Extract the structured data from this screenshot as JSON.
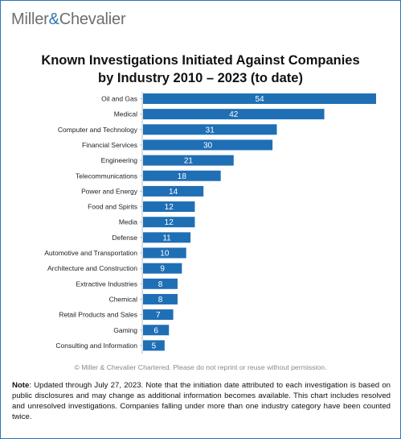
{
  "header": {
    "brand_left": "Miller",
    "brand_amp": "&",
    "brand_right": "Chevalier"
  },
  "title": {
    "line1": "Known Investigations Initiated Against Companies",
    "line2": "by Industry 2010 – 2023 (to date)"
  },
  "colors": {
    "bar": "#1f6fb5",
    "brand_accent": "#2f74b5",
    "brand_text": "#6d6e71"
  },
  "chart_data": {
    "type": "bar",
    "orientation": "horizontal",
    "title": "Known Investigations Initiated Against Companies by Industry 2010 – 2023 (to date)",
    "categories": [
      "Oil and Gas",
      "Medical",
      "Computer and Technology",
      "Financial Services",
      "Engineering",
      "Telecommunications",
      "Power and Energy",
      "Food and Spirits",
      "Media",
      "Defense",
      "Automotive and Transportation",
      "Architecture and Construction",
      "Extractive Industries",
      "Chemical",
      "Retail Products and Sales",
      "Gaming",
      "Consulting and Information"
    ],
    "values": [
      54,
      42,
      31,
      30,
      21,
      18,
      14,
      12,
      12,
      11,
      10,
      9,
      8,
      8,
      7,
      6,
      5
    ],
    "xlim": [
      0,
      54
    ],
    "data_labels": "inside-bar",
    "grid": false,
    "legend": "none"
  },
  "footer": {
    "copyright": "© Miller & Chevalier Chartered. Please do not reprint or reuse without permission.",
    "note_label": "Note",
    "note_text": ": Updated through July 27, 2023. Note that the initiation date attributed to each investigation is based on public disclosures and may change as additional information becomes available. This chart includes resolved and unresolved investigations. Companies falling under more than one industry category have been counted twice."
  }
}
